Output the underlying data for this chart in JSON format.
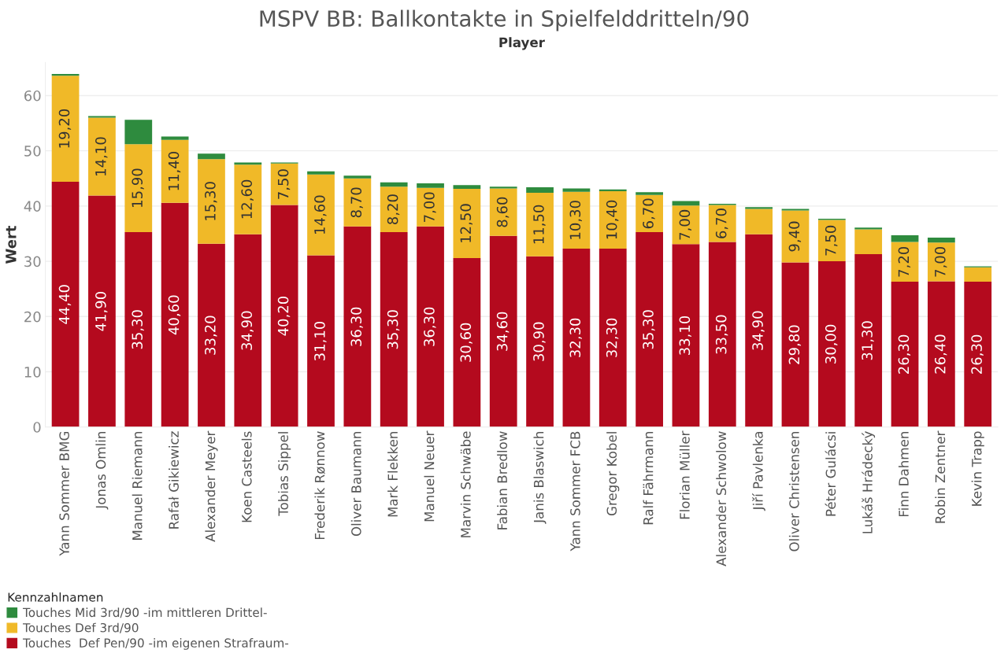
{
  "chart_data": {
    "type": "bar",
    "title": "MSPV BB: Ballkontakte in Spielfelddritteln/90",
    "xlabel": "Player",
    "ylabel": "Wert",
    "legend_title": "Kennzahlnamen",
    "categories": [
      "Yann Sommer BMG",
      "Jonas Omlin",
      "Manuel Riemann",
      "Rafał Gikiewicz",
      "Alexander Meyer",
      "Koen Casteels",
      "Tobias Sippel",
      "Frederik Rønnow",
      "Oliver Baumann",
      "Mark Flekken",
      "Manuel Neuer",
      "Marvin Schwäbe",
      "Fabian Bredlow",
      "Janis Blaswich",
      "Yann Sommer FCB",
      "Gregor Kobel",
      "Ralf Fährmann",
      "Florian Müller",
      "Alexander Schwolow",
      "Jiří Pavlenka",
      "Oliver Christensen",
      "Péter Gulácsi",
      "Lukáš Hrádecký",
      "Finn Dahmen",
      "Robin Zentner",
      "Kevin Trapp"
    ],
    "stacked": true,
    "ylim": [
      0,
      66
    ],
    "yticks": [
      0,
      10,
      20,
      30,
      40,
      50,
      60
    ],
    "grid": "y",
    "legend": "bottom left",
    "series": [
      {
        "name": "Touches  Def Pen/90 -im eigenen Strafraum-",
        "color": "#b40a1e",
        "values": [
          44.4,
          41.9,
          35.3,
          40.6,
          33.2,
          34.9,
          40.2,
          31.1,
          36.3,
          35.3,
          36.3,
          30.6,
          34.6,
          30.9,
          32.3,
          32.3,
          35.3,
          33.1,
          33.5,
          34.9,
          29.8,
          30.0,
          31.3,
          26.3,
          26.4,
          26.3
        ],
        "value_labels": [
          "44,40",
          "41,90",
          "35,30",
          "40,60",
          "33,20",
          "34,90",
          "40,20",
          "31,10",
          "36,30",
          "35,30",
          "36,30",
          "30,60",
          "34,60",
          "30,90",
          "32,30",
          "32,30",
          "35,30",
          "33,10",
          "33,50",
          "34,90",
          "29,80",
          "30,00",
          "31,30",
          "26,30",
          "26,40",
          "26,30"
        ]
      },
      {
        "name": "Touches Def 3rd/90",
        "color": "#f0b928",
        "values": [
          19.2,
          14.1,
          15.9,
          11.4,
          15.3,
          12.6,
          7.5,
          14.6,
          8.7,
          8.2,
          7.0,
          12.5,
          8.6,
          11.5,
          10.3,
          10.4,
          6.7,
          7.0,
          6.7,
          4.6,
          9.4,
          7.5,
          4.5,
          7.2,
          7.0,
          2.6
        ],
        "value_labels": [
          "19,20",
          "14,10",
          "15,90",
          "11,40",
          "15,30",
          "12,60",
          "7,50",
          "14,60",
          "8,70",
          "8,20",
          "7,00",
          "12,50",
          "8,60",
          "11,50",
          "10,30",
          "10,40",
          "6,70",
          "7,00",
          "6,70",
          null,
          "9,40",
          "7,50",
          null,
          "7,20",
          "7,00",
          null
        ]
      },
      {
        "name": "Touches Mid 3rd/90 -im mittleren Drittel-",
        "color": "#2e8b3e",
        "values": [
          0.3,
          0.3,
          4.4,
          0.6,
          1.0,
          0.4,
          0.2,
          0.6,
          0.5,
          0.8,
          0.8,
          0.7,
          0.3,
          1.0,
          0.6,
          0.3,
          0.5,
          0.8,
          0.2,
          0.3,
          0.3,
          0.2,
          0.3,
          1.2,
          0.9,
          0.2
        ]
      }
    ]
  }
}
